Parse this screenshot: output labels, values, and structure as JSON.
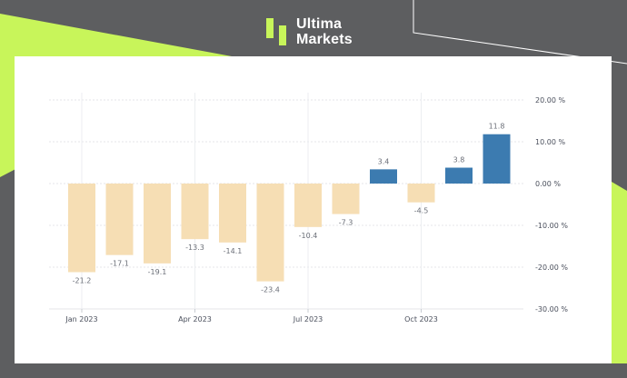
{
  "brand": {
    "name_line1": "Ultima",
    "name_line2": "Markets",
    "accent_color": "#c8f55a",
    "logo_icon": "ultima-markets-logo-icon"
  },
  "chart_data": {
    "type": "bar",
    "title": "",
    "xlabel": "",
    "ylabel": "",
    "ylim": [
      -30,
      20
    ],
    "y_ticks": [
      "20.00 %",
      "10.00 %",
      "0.00 %",
      "-10.00 %",
      "-20.00 %",
      "-30.00 %"
    ],
    "x_tick_labels": [
      "Jan 2023",
      "Apr 2023",
      "Jul 2023",
      "Oct 2023"
    ],
    "categories": [
      "Jan 2023",
      "Feb 2023",
      "Mar 2023",
      "Apr 2023",
      "May 2023",
      "Jun 2023",
      "Jul 2023",
      "Aug 2023",
      "Sep 2023",
      "Oct 2023",
      "Nov 2023",
      "Dec 2023"
    ],
    "values": [
      -21.2,
      -17.1,
      -19.1,
      -13.3,
      -14.1,
      -23.4,
      -10.4,
      -7.3,
      3.4,
      -4.5,
      3.8,
      11.8
    ],
    "labels": [
      "-21.2",
      "-17.1",
      "-19.1",
      "-13.3",
      "-14.1",
      "-23.4",
      "-10.4",
      "-7.3",
      "3.4",
      "-4.5",
      "3.8",
      "11.8"
    ],
    "colors": {
      "negative": "#f6deb4",
      "positive": "#3c7bb0"
    },
    "grid": true,
    "legend": "none"
  }
}
